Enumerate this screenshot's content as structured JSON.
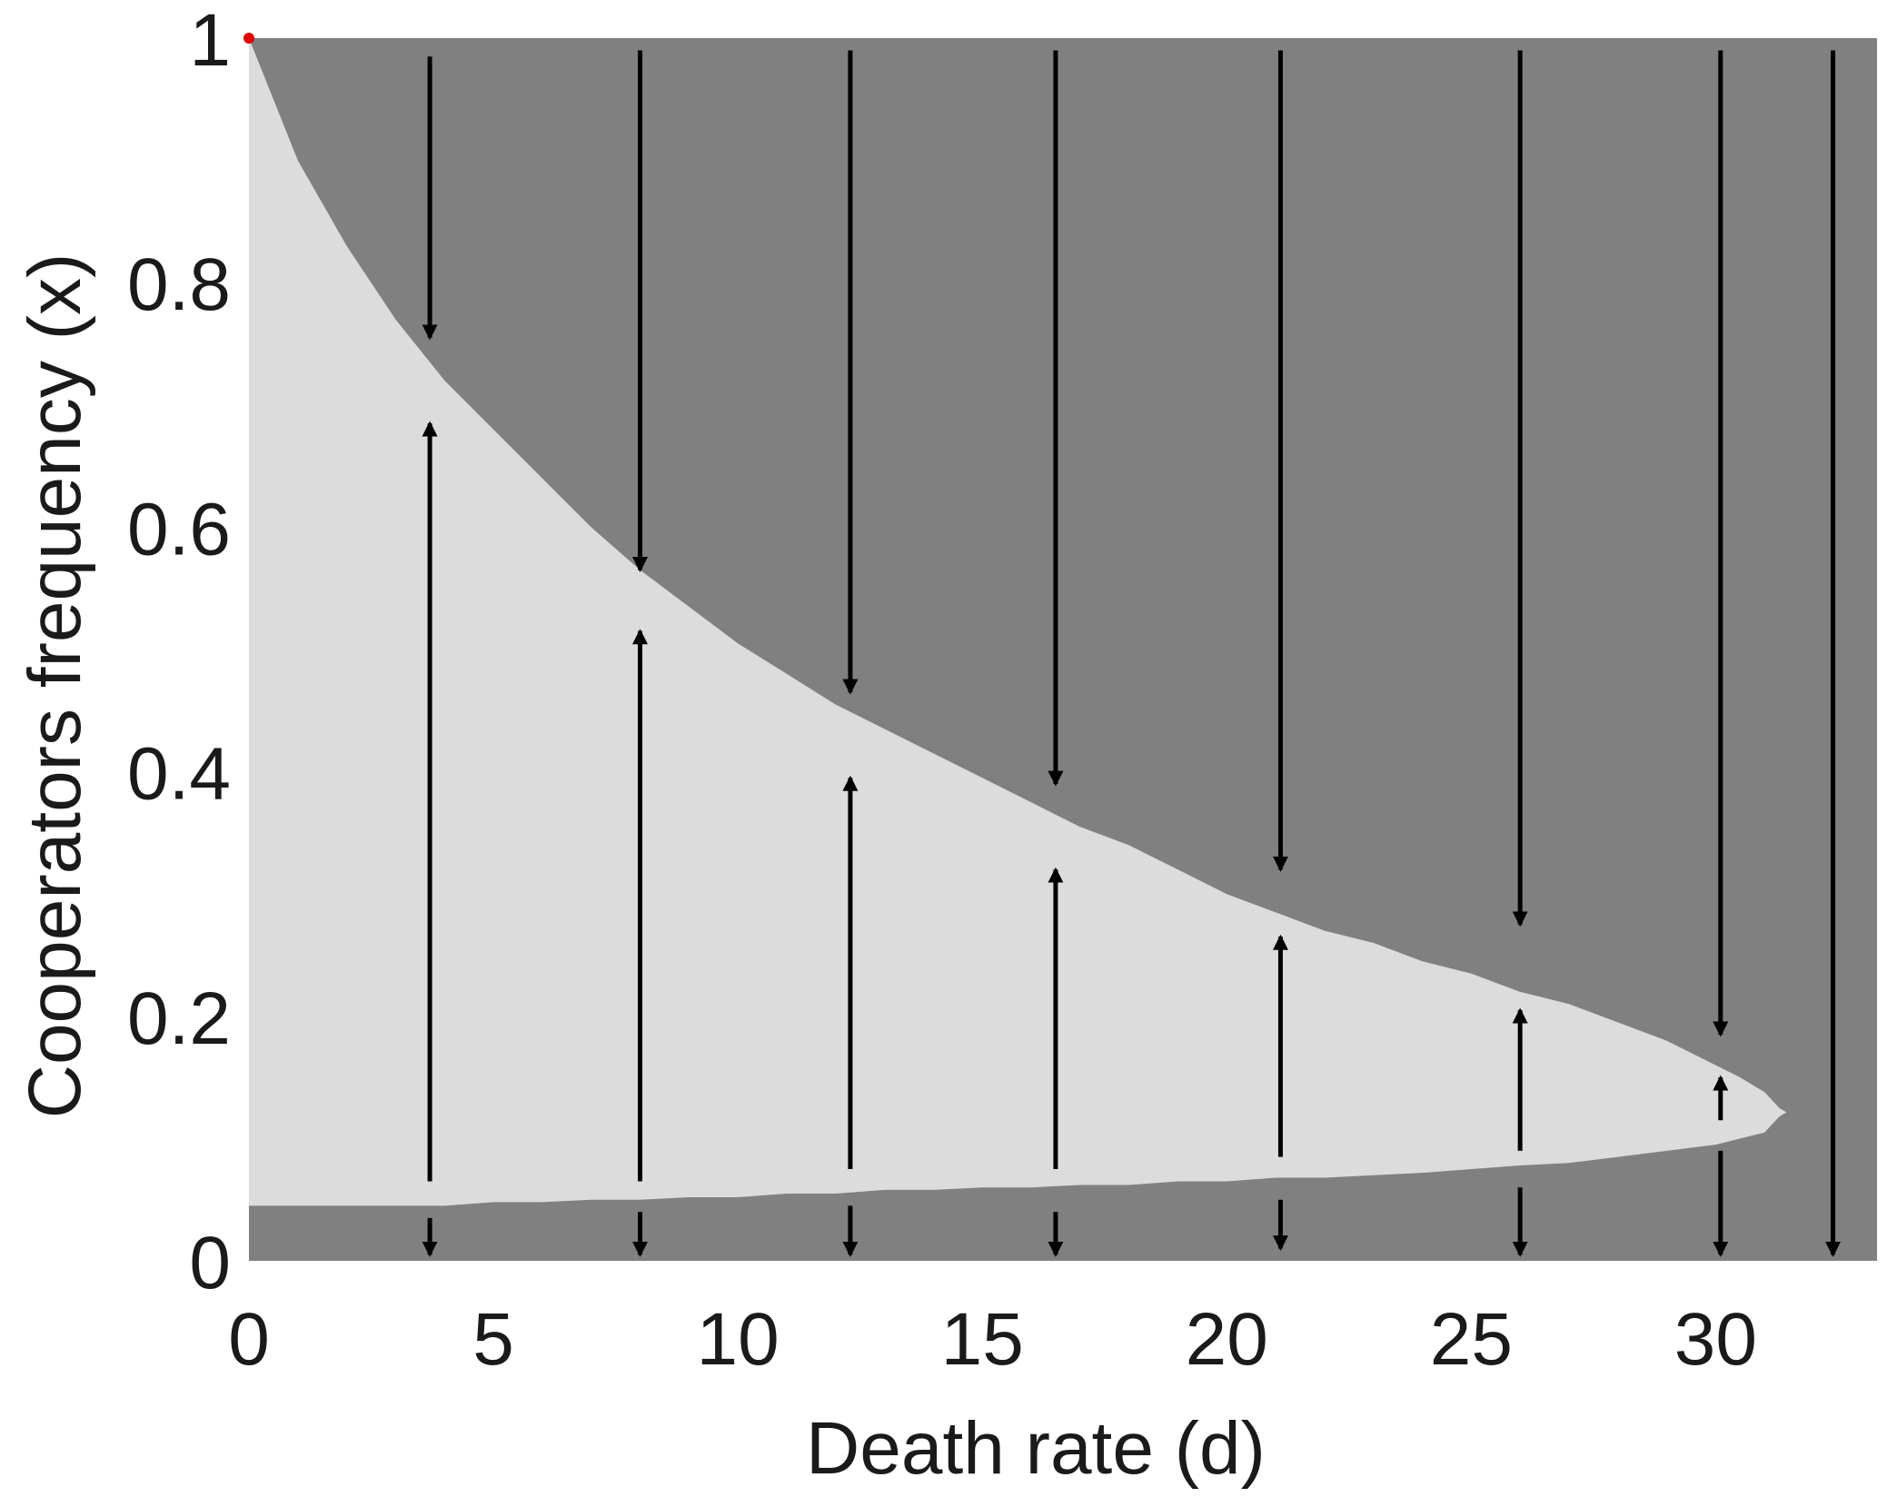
{
  "chart_data": {
    "type": "phase-diagram",
    "title": "",
    "xlabel": "Death rate (d)",
    "ylabel": "Cooperators frequency (x)",
    "xlim": [
      0,
      33.3
    ],
    "ylim": [
      0,
      1
    ],
    "x_ticks": [
      0,
      5,
      10,
      15,
      20,
      25,
      30
    ],
    "x_tick_labels": [
      "0",
      "5",
      "10",
      "15",
      "20",
      "25",
      "30"
    ],
    "y_ticks": [
      0,
      0.2,
      0.4,
      0.6,
      0.8,
      1
    ],
    "y_tick_labels": [
      "0",
      "0.2",
      "0.4",
      "0.6",
      "0.8",
      "1"
    ],
    "colors": {
      "defector_region": "#808080",
      "cooperator_region": "#dcdcdc",
      "arrow": "#000000",
      "marker": "#e00000"
    },
    "regions": {
      "upper_boundary": {
        "d": [
          0,
          1,
          2,
          3,
          4,
          5,
          6,
          7,
          8,
          9,
          10,
          11,
          12,
          13,
          14,
          15,
          16,
          17,
          18,
          19,
          20,
          21,
          22,
          23,
          24,
          25,
          26,
          27,
          28,
          29,
          30,
          30.5,
          31,
          31.3
        ],
        "x": [
          1.0,
          0.9,
          0.83,
          0.77,
          0.72,
          0.68,
          0.64,
          0.6,
          0.565,
          0.535,
          0.505,
          0.48,
          0.455,
          0.435,
          0.415,
          0.395,
          0.375,
          0.355,
          0.34,
          0.32,
          0.3,
          0.285,
          0.27,
          0.26,
          0.245,
          0.235,
          0.22,
          0.21,
          0.195,
          0.18,
          0.16,
          0.15,
          0.138,
          0.125
        ]
      },
      "lower_boundary": {
        "d": [
          0,
          1,
          2,
          3,
          4,
          5,
          6,
          7,
          8,
          9,
          10,
          11,
          12,
          13,
          14,
          15,
          16,
          17,
          18,
          19,
          20,
          21,
          22,
          23,
          24,
          25,
          26,
          27,
          28,
          29,
          30,
          30.5,
          31,
          31.3
        ],
        "x": [
          0.045,
          0.045,
          0.045,
          0.045,
          0.045,
          0.048,
          0.048,
          0.05,
          0.05,
          0.052,
          0.052,
          0.055,
          0.055,
          0.058,
          0.058,
          0.06,
          0.06,
          0.062,
          0.062,
          0.065,
          0.065,
          0.068,
          0.068,
          0.07,
          0.072,
          0.075,
          0.078,
          0.08,
          0.085,
          0.09,
          0.095,
          0.1,
          0.105,
          0.118
        ]
      }
    },
    "arrows": [
      {
        "d": 3.7,
        "segments": [
          {
            "from": 0.985,
            "to": 0.755
          },
          {
            "from": 0.065,
            "to": 0.685
          },
          {
            "from": 0.035,
            "to": 0.005
          }
        ]
      },
      {
        "d": 8.0,
        "segments": [
          {
            "from": 0.99,
            "to": 0.565
          },
          {
            "from": 0.065,
            "to": 0.515
          },
          {
            "from": 0.04,
            "to": 0.005
          }
        ]
      },
      {
        "d": 12.3,
        "segments": [
          {
            "from": 0.99,
            "to": 0.465
          },
          {
            "from": 0.075,
            "to": 0.395
          },
          {
            "from": 0.045,
            "to": 0.005
          }
        ]
      },
      {
        "d": 16.5,
        "segments": [
          {
            "from": 0.99,
            "to": 0.39
          },
          {
            "from": 0.075,
            "to": 0.32
          },
          {
            "from": 0.04,
            "to": 0.005
          }
        ]
      },
      {
        "d": 21.1,
        "segments": [
          {
            "from": 0.99,
            "to": 0.32
          },
          {
            "from": 0.085,
            "to": 0.265
          },
          {
            "from": 0.05,
            "to": 0.01
          }
        ]
      },
      {
        "d": 26.0,
        "segments": [
          {
            "from": 0.99,
            "to": 0.275
          },
          {
            "from": 0.09,
            "to": 0.205
          },
          {
            "from": 0.06,
            "to": 0.005
          }
        ]
      },
      {
        "d": 30.1,
        "segments": [
          {
            "from": 0.99,
            "to": 0.185
          },
          {
            "from": 0.115,
            "to": 0.15
          },
          {
            "from": 0.09,
            "to": 0.005
          }
        ]
      },
      {
        "d": 32.4,
        "segments": [
          {
            "from": 0.99,
            "to": 0.005
          }
        ]
      }
    ],
    "markers": [
      {
        "d": 0,
        "x": 1
      }
    ]
  }
}
